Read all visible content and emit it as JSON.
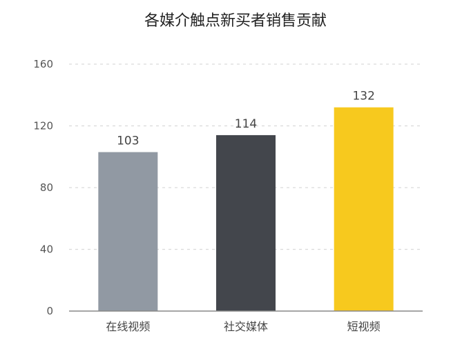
{
  "chart_data": {
    "type": "bar",
    "title": "各媒介触点新买者销售贡献",
    "xlabel": "",
    "ylabel": "",
    "categories": [
      "在线视频",
      "社交媒体",
      "短视频"
    ],
    "values": [
      103,
      114,
      132
    ],
    "colors": [
      "#9199a3",
      "#43464c",
      "#f7c91e"
    ],
    "ylim": [
      0,
      160
    ],
    "yticks": [
      0,
      40,
      80,
      120,
      160
    ],
    "grid": true,
    "data_labels": true,
    "legend": "none"
  }
}
